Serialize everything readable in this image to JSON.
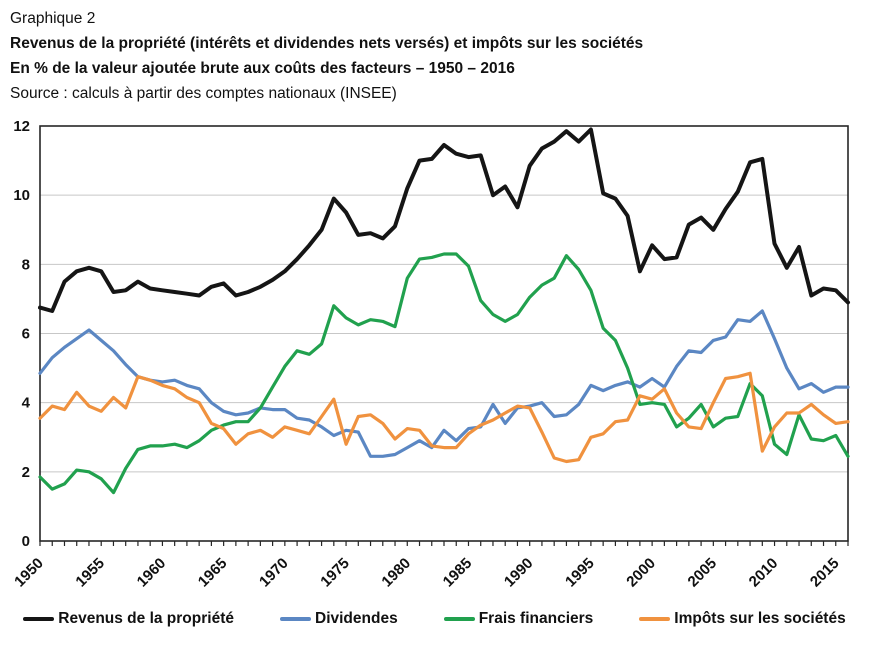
{
  "header": {
    "line1": "Graphique 2",
    "line2": "Revenus de la propriété (intérêts et dividendes nets versés) et impôts sur les sociétés",
    "line3": "En % de la valeur ajoutée brute aux coûts des facteurs – 1950 – 2016",
    "line4": "Source : calculs à partir des comptes nationaux (INSEE)"
  },
  "chart_data": {
    "type": "line",
    "title": "Revenus de la propriété (intérêts et dividendes nets versés) et impôts sur les sociétés",
    "xlabel": "",
    "ylabel": "En % de la valeur ajoutée brute aux coûts des facteurs",
    "x_range": [
      1950,
      2016
    ],
    "x_step": 1,
    "ylim": [
      0,
      12
    ],
    "grid": "horizontal",
    "legend_position": "bottom",
    "x_tick_labels": [
      "1950",
      "1955",
      "1960",
      "1965",
      "1970",
      "1975",
      "1980",
      "1985",
      "1990",
      "1995",
      "2000",
      "2005",
      "2010",
      "2015"
    ],
    "y_ticks": [
      0,
      2,
      4,
      6,
      8,
      10,
      12
    ],
    "series": [
      {
        "name": "Revenus de la propriété",
        "color": "#151515",
        "width": 4,
        "values": [
          6.75,
          6.65,
          7.5,
          7.8,
          7.9,
          7.8,
          7.2,
          7.25,
          7.5,
          7.3,
          7.25,
          7.2,
          7.15,
          7.1,
          7.35,
          7.45,
          7.1,
          7.2,
          7.35,
          7.55,
          7.8,
          8.15,
          8.55,
          9.0,
          9.9,
          9.5,
          8.85,
          8.9,
          8.75,
          9.1,
          10.2,
          11.0,
          11.05,
          11.45,
          11.2,
          11.1,
          11.15,
          10.0,
          10.25,
          9.65,
          10.85,
          11.35,
          11.55,
          11.85,
          11.55,
          11.9,
          10.05,
          9.9,
          9.4,
          7.8,
          8.55,
          8.15,
          8.2,
          9.15,
          9.35,
          9.0,
          9.6,
          10.1,
          10.95,
          11.05,
          8.6,
          7.9,
          8.5,
          7.1,
          7.3,
          7.25,
          6.9
        ]
      },
      {
        "name": "Dividendes",
        "color": "#5b87c3",
        "width": 3.2,
        "values": [
          4.85,
          5.3,
          5.6,
          5.85,
          6.1,
          5.8,
          5.5,
          5.1,
          4.75,
          4.65,
          4.6,
          4.65,
          4.5,
          4.4,
          4.0,
          3.75,
          3.65,
          3.7,
          3.85,
          3.8,
          3.8,
          3.55,
          3.5,
          3.3,
          3.05,
          3.2,
          3.15,
          2.45,
          2.45,
          2.5,
          2.7,
          2.9,
          2.7,
          3.2,
          2.9,
          3.25,
          3.3,
          3.95,
          3.4,
          3.85,
          3.9,
          4.0,
          3.6,
          3.65,
          3.95,
          4.5,
          4.35,
          4.5,
          4.6,
          4.45,
          4.7,
          4.45,
          5.05,
          5.5,
          5.45,
          5.8,
          5.9,
          6.4,
          6.35,
          6.65,
          5.85,
          5.0,
          4.4,
          4.55,
          4.3,
          4.45,
          4.45
        ]
      },
      {
        "name": "Frais financiers",
        "color": "#21a14e",
        "width": 3.2,
        "values": [
          1.85,
          1.5,
          1.65,
          2.05,
          2.0,
          1.8,
          1.4,
          2.1,
          2.65,
          2.75,
          2.75,
          2.8,
          2.7,
          2.9,
          3.2,
          3.35,
          3.45,
          3.45,
          3.85,
          4.45,
          5.05,
          5.5,
          5.4,
          5.7,
          6.8,
          6.45,
          6.25,
          6.4,
          6.35,
          6.2,
          7.6,
          8.15,
          8.2,
          8.3,
          8.3,
          7.95,
          6.95,
          6.55,
          6.35,
          6.55,
          7.05,
          7.4,
          7.6,
          8.25,
          7.85,
          7.25,
          6.15,
          5.8,
          5.0,
          3.95,
          4.0,
          3.95,
          3.3,
          3.55,
          3.95,
          3.3,
          3.55,
          3.6,
          4.55,
          4.2,
          2.8,
          2.5,
          3.65,
          2.95,
          2.9,
          3.05,
          2.45
        ]
      },
      {
        "name": "Impôts sur les sociétés",
        "color": "#f0923f",
        "width": 3.2,
        "values": [
          3.55,
          3.9,
          3.8,
          4.3,
          3.9,
          3.75,
          4.15,
          3.85,
          4.75,
          4.65,
          4.5,
          4.4,
          4.15,
          4.0,
          3.4,
          3.25,
          2.8,
          3.1,
          3.2,
          3.0,
          3.3,
          3.2,
          3.1,
          3.6,
          4.1,
          2.8,
          3.6,
          3.65,
          3.4,
          2.95,
          3.25,
          3.2,
          2.75,
          2.7,
          2.7,
          3.1,
          3.35,
          3.5,
          3.7,
          3.9,
          3.85,
          3.15,
          2.4,
          2.3,
          2.35,
          3.0,
          3.1,
          3.45,
          3.5,
          4.2,
          4.1,
          4.4,
          3.7,
          3.3,
          3.25,
          4.0,
          4.7,
          4.75,
          4.85,
          2.6,
          3.3,
          3.7,
          3.7,
          3.95,
          3.65,
          3.4,
          3.45
        ]
      }
    ]
  }
}
